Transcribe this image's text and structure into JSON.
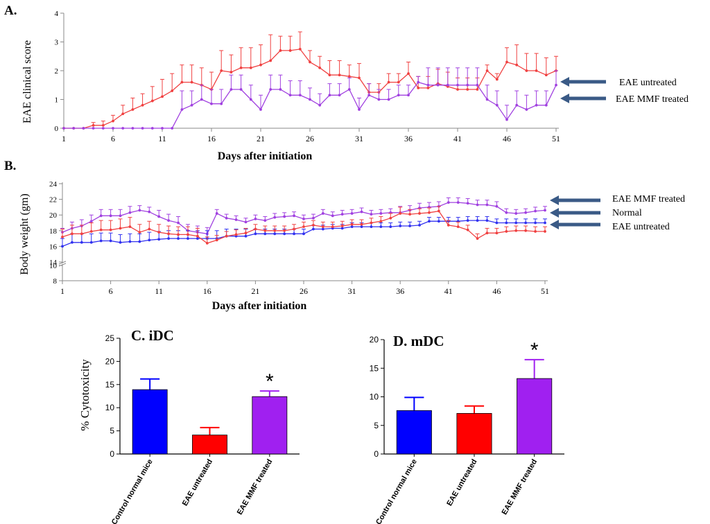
{
  "chart_data": [
    {
      "type": "line",
      "panel": "A.",
      "ylabel": "EAE clinical score",
      "xlabel": "Days after initiation",
      "xlim": [
        1,
        51
      ],
      "ylim": [
        0,
        4
      ],
      "xticks": [
        1,
        6,
        11,
        16,
        21,
        26,
        31,
        36,
        41,
        46,
        51
      ],
      "yticks": [
        0,
        1,
        2,
        3,
        4
      ],
      "series": [
        {
          "name": "EAE untreated",
          "color": "#f04040",
          "x": [
            1,
            2,
            3,
            4,
            5,
            6,
            7,
            8,
            9,
            10,
            11,
            12,
            13,
            14,
            15,
            16,
            17,
            18,
            19,
            20,
            21,
            22,
            23,
            24,
            25,
            26,
            27,
            28,
            29,
            30,
            31,
            32,
            33,
            34,
            35,
            36,
            37,
            38,
            39,
            40,
            41,
            42,
            43,
            44,
            45,
            46,
            47,
            48,
            49,
            50,
            51
          ],
          "values": [
            0,
            0,
            0,
            0.1,
            0.1,
            0.25,
            0.5,
            0.65,
            0.8,
            0.95,
            1.1,
            1.3,
            1.6,
            1.6,
            1.5,
            1.35,
            2.0,
            1.95,
            2.1,
            2.1,
            2.2,
            2.35,
            2.7,
            2.7,
            2.75,
            2.3,
            2.1,
            1.85,
            1.85,
            1.8,
            1.75,
            1.25,
            1.25,
            1.6,
            1.6,
            1.9,
            1.4,
            1.4,
            1.55,
            1.45,
            1.35,
            1.35,
            1.35,
            2.0,
            1.7,
            2.3,
            2.2,
            2.0,
            2.0,
            1.85,
            2.0
          ],
          "err": [
            0,
            0,
            0,
            0.1,
            0.15,
            0.2,
            0.3,
            0.4,
            0.4,
            0.5,
            0.6,
            0.6,
            0.6,
            0.6,
            0.6,
            0.6,
            0.7,
            0.6,
            0.7,
            0.7,
            0.7,
            0.9,
            0.5,
            0.5,
            0.6,
            0.4,
            0.4,
            0.5,
            0.5,
            0.4,
            0.5,
            0.3,
            0.3,
            0.3,
            0.3,
            0.4,
            0.4,
            0.4,
            0.5,
            0.5,
            0.4,
            0.4,
            0.4,
            0.2,
            0.2,
            0.5,
            0.7,
            0.6,
            0.6,
            0.6,
            0.5
          ]
        },
        {
          "name": "EAE MMF treated",
          "color": "#a040e0",
          "x": [
            1,
            2,
            3,
            4,
            5,
            6,
            7,
            8,
            9,
            10,
            11,
            12,
            13,
            14,
            15,
            16,
            17,
            18,
            19,
            20,
            21,
            22,
            23,
            24,
            25,
            26,
            27,
            28,
            29,
            30,
            31,
            32,
            33,
            34,
            35,
            36,
            37,
            38,
            39,
            40,
            41,
            42,
            43,
            44,
            45,
            46,
            47,
            48,
            49,
            50,
            51
          ],
          "values": [
            0,
            0,
            0,
            0,
            0,
            0,
            0,
            0,
            0,
            0,
            0,
            0,
            0.65,
            0.8,
            1.0,
            0.85,
            0.85,
            1.35,
            1.35,
            1.0,
            0.65,
            1.35,
            1.35,
            1.15,
            1.15,
            1.0,
            0.8,
            1.15,
            1.15,
            1.35,
            0.65,
            1.15,
            1.0,
            1.0,
            1.15,
            1.15,
            1.6,
            1.5,
            1.5,
            1.5,
            1.5,
            1.5,
            1.5,
            1.0,
            0.8,
            0.3,
            0.8,
            0.65,
            0.8,
            0.8,
            1.5
          ],
          "err": [
            0,
            0,
            0,
            0,
            0,
            0,
            0,
            0,
            0,
            0,
            0,
            0,
            0.65,
            0.5,
            0.5,
            0.5,
            0.5,
            0.5,
            0.5,
            0.5,
            0.5,
            0.5,
            0.5,
            0.5,
            0.5,
            0.4,
            0.4,
            0.4,
            0.4,
            0.4,
            0.4,
            0.4,
            0.35,
            0.35,
            0.35,
            0.35,
            0.2,
            0.6,
            0.6,
            0.6,
            0.6,
            0.6,
            0.6,
            0.5,
            0.5,
            0.5,
            0.5,
            0.5,
            0.5,
            0.5,
            0.5
          ]
        }
      ],
      "annotations": [
        "EAE untreated",
        "EAE MMF treated"
      ]
    },
    {
      "type": "line",
      "panel": "B.",
      "ylabel": "Body weight (gm)",
      "xlabel": "Days after initiation",
      "xlim": [
        1,
        51
      ],
      "ylim": [
        8,
        24
      ],
      "axis_break": [
        10,
        14
      ],
      "xticks": [
        1,
        6,
        11,
        16,
        21,
        26,
        31,
        36,
        41,
        46,
        51
      ],
      "yticks_lower": [
        8,
        10
      ],
      "yticks_upper": [
        14,
        16,
        18,
        20,
        22,
        24
      ],
      "series": [
        {
          "name": "EAE MMF treated",
          "color": "#a040e0",
          "x": [
            1,
            2,
            3,
            4,
            5,
            6,
            7,
            8,
            9,
            10,
            11,
            12,
            13,
            14,
            15,
            16,
            17,
            18,
            19,
            20,
            21,
            22,
            23,
            24,
            25,
            26,
            27,
            28,
            29,
            30,
            31,
            32,
            33,
            34,
            35,
            36,
            37,
            38,
            39,
            40,
            41,
            42,
            43,
            44,
            45,
            46,
            47,
            48,
            49,
            50,
            51
          ],
          "values": [
            17.8,
            18.3,
            18.6,
            19.2,
            19.9,
            19.9,
            19.9,
            20.3,
            20.6,
            20.4,
            19.8,
            19.3,
            19.0,
            18.0,
            17.8,
            17.6,
            20.2,
            19.6,
            19.4,
            19.1,
            19.5,
            19.3,
            19.7,
            19.8,
            19.9,
            19.5,
            19.6,
            20.2,
            19.9,
            20.1,
            20.2,
            20.4,
            20.1,
            20.2,
            20.3,
            20.3,
            20.6,
            20.9,
            21.0,
            21.1,
            21.6,
            21.6,
            21.5,
            21.3,
            21.3,
            21.1,
            20.3,
            20.2,
            20.3,
            20.5,
            20.6
          ],
          "err": [
            0.5,
            0.8,
            0.8,
            0.8,
            0.8,
            0.8,
            0.8,
            0.8,
            0.6,
            0.6,
            0.8,
            0.8,
            0.8,
            0.8,
            0.8,
            0.8,
            0.5,
            0.5,
            0.5,
            0.5,
            0.5,
            0.5,
            0.5,
            0.5,
            0.5,
            0.5,
            0.5,
            0.5,
            0.5,
            0.5,
            0.5,
            0.5,
            0.5,
            0.5,
            0.5,
            0.8,
            0.6,
            0.6,
            0.6,
            0.6,
            0.6,
            0.6,
            0.6,
            0.6,
            0.6,
            0.6,
            0.5,
            0.5,
            0.5,
            0.5,
            0.5
          ]
        },
        {
          "name": "Normal",
          "color": "#3030f0",
          "x": [
            1,
            2,
            3,
            4,
            5,
            6,
            7,
            8,
            9,
            10,
            11,
            12,
            13,
            14,
            15,
            16,
            17,
            18,
            19,
            20,
            21,
            22,
            23,
            24,
            25,
            26,
            27,
            28,
            29,
            30,
            31,
            32,
            33,
            34,
            35,
            36,
            37,
            38,
            39,
            40,
            41,
            42,
            43,
            44,
            45,
            46,
            47,
            48,
            49,
            50,
            51
          ],
          "values": [
            16.0,
            16.5,
            16.5,
            16.5,
            16.7,
            16.7,
            16.5,
            16.6,
            16.6,
            16.8,
            16.9,
            17.0,
            17.0,
            17.0,
            17.0,
            17.0,
            17.0,
            17.3,
            17.3,
            17.3,
            17.6,
            17.6,
            17.6,
            17.6,
            17.6,
            17.6,
            18.2,
            18.2,
            18.3,
            18.3,
            18.5,
            18.5,
            18.5,
            18.5,
            18.5,
            18.6,
            18.6,
            18.7,
            19.2,
            19.2,
            19.2,
            19.2,
            19.3,
            19.3,
            19.3,
            19.0,
            19.0,
            19.0,
            19.0,
            19.0,
            19.0
          ],
          "err": [
            1.0,
            1.1,
            1.1,
            1.1,
            1.0,
            1.0,
            1.0,
            1.0,
            1.0,
            1.0,
            1.0,
            1.0,
            1.0,
            1.0,
            1.0,
            1.0,
            1.0,
            0.9,
            0.9,
            0.9,
            0.6,
            0.6,
            0.6,
            0.6,
            0.6,
            0.6,
            0.5,
            0.5,
            0.5,
            0.5,
            0.5,
            0.5,
            0.5,
            0.5,
            0.5,
            0.5,
            0.5,
            0.5,
            0.5,
            0.5,
            0.5,
            0.5,
            0.5,
            0.5,
            0.5,
            0.5,
            0.5,
            0.5,
            0.5,
            0.5,
            0.5
          ]
        },
        {
          "name": "EAE untreated",
          "color": "#f04040",
          "x": [
            1,
            2,
            3,
            4,
            5,
            6,
            7,
            8,
            9,
            10,
            11,
            12,
            13,
            14,
            15,
            16,
            17,
            18,
            19,
            20,
            21,
            22,
            23,
            24,
            25,
            26,
            27,
            28,
            29,
            30,
            31,
            32,
            33,
            34,
            35,
            36,
            37,
            38,
            39,
            40,
            41,
            42,
            43,
            44,
            45,
            46,
            47,
            48,
            49,
            50,
            51
          ],
          "values": [
            17.2,
            17.6,
            17.6,
            17.9,
            18.1,
            18.1,
            18.3,
            18.5,
            17.8,
            18.2,
            17.8,
            17.6,
            17.5,
            17.5,
            17.3,
            16.4,
            16.8,
            17.3,
            17.5,
            17.7,
            18.2,
            18.0,
            18.0,
            18.0,
            18.2,
            18.5,
            18.7,
            18.5,
            18.5,
            18.6,
            18.8,
            18.8,
            19.0,
            19.2,
            19.6,
            20.2,
            20.1,
            20.2,
            20.3,
            20.5,
            18.7,
            18.5,
            18.1,
            17.0,
            17.7,
            17.7,
            17.9,
            18.0,
            18.0,
            17.9,
            17.9
          ],
          "err": [
            1.0,
            1.1,
            1.1,
            1.1,
            1.2,
            1.2,
            1.2,
            1.2,
            1.0,
            1.0,
            1.0,
            1.0,
            1.0,
            1.0,
            1.0,
            0.8,
            0.6,
            0.6,
            0.6,
            0.6,
            0.6,
            0.6,
            0.6,
            0.6,
            0.6,
            0.6,
            0.6,
            0.6,
            0.6,
            0.6,
            0.6,
            0.6,
            0.6,
            0.6,
            0.6,
            0.8,
            0.6,
            0.6,
            0.6,
            0.6,
            0.6,
            0.6,
            0.6,
            0.6,
            0.6,
            0.6,
            0.6,
            0.6,
            0.6,
            0.6,
            0.6
          ]
        }
      ],
      "annotations": [
        "EAE MMF treated",
        "Normal",
        "EAE untreated"
      ]
    },
    {
      "type": "bar",
      "panel": "C. iDC",
      "title": "C. iDC",
      "ylabel": "% Cytotoxicity",
      "ylim": [
        0,
        25
      ],
      "yticks": [
        0,
        5,
        10,
        15,
        20,
        25
      ],
      "categories": [
        "Control normal mice",
        "EAE untreated",
        "EAE MMF treated"
      ],
      "values": [
        13.9,
        4.1,
        12.4
      ],
      "errors": [
        2.3,
        1.6,
        1.2
      ],
      "colors": [
        "#0000ff",
        "#ff0000",
        "#a020f0"
      ],
      "significance": [
        "",
        "",
        "*"
      ]
    },
    {
      "type": "bar",
      "panel": "D. mDC",
      "title": "D. mDC",
      "ylabel": "",
      "ylim": [
        0,
        20
      ],
      "yticks": [
        0,
        5,
        10,
        15,
        20
      ],
      "categories": [
        "Control normal mice",
        "EAE untreated",
        "EAE MMF treated"
      ],
      "values": [
        7.6,
        7.1,
        13.2
      ],
      "errors": [
        2.3,
        1.3,
        3.3
      ],
      "colors": [
        "#0000ff",
        "#ff0000",
        "#a020f0"
      ],
      "significance": [
        "",
        "",
        "*"
      ]
    }
  ],
  "arrow_color": "#3a5a86"
}
